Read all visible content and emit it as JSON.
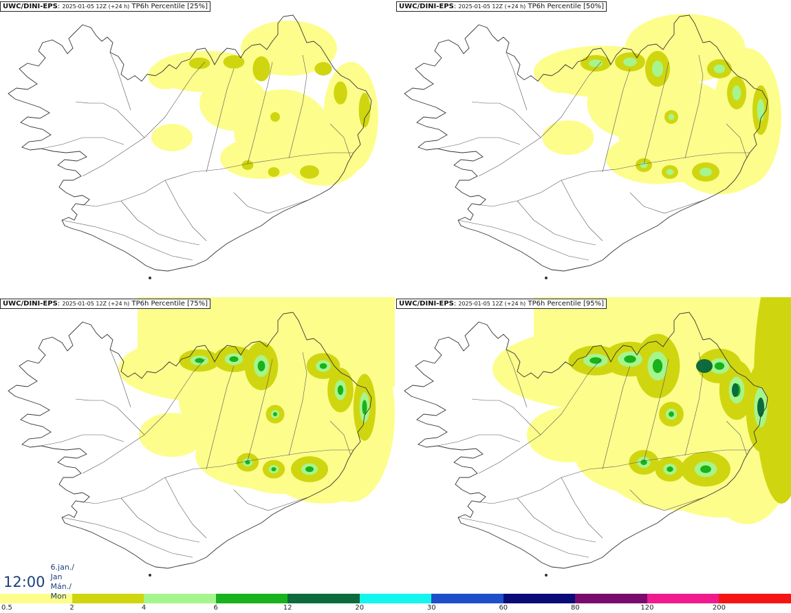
{
  "panels": [
    {
      "model": "UWC/DINI-EPS",
      "init": "2025-01-05 12Z (+24 h)",
      "field": "TP6h Percentile [25%]",
      "level": 0
    },
    {
      "model": "UWC/DINI-EPS",
      "init": "2025-01-05 12Z (+24 h)",
      "field": "TP6h Percentile [50%]",
      "level": 1
    },
    {
      "model": "UWC/DINI-EPS",
      "init": "2025-01-05 12Z (+24 h)",
      "field": "TP6h Percentile [75%]",
      "level": 2
    },
    {
      "model": "UWC/DINI-EPS",
      "init": "2025-01-05 12Z (+24 h)",
      "field": "TP6h Percentile [95%]",
      "level": 3
    }
  ],
  "valid_time": {
    "clock": "12:00",
    "date_line1": "6.jan./ Jan",
    "date_line2": "Mán./ Mon"
  },
  "legend": {
    "labels": [
      "0.5",
      "2",
      "4",
      "6",
      "12",
      "20",
      "30",
      "60",
      "80",
      "120",
      "200"
    ],
    "colors": [
      "#fdfd8c",
      "#cfd60f",
      "#a6f58c",
      "#18b21d",
      "#0c6b3c",
      "#14f5f0",
      "#1c4fc9",
      "#0a0a78",
      "#7a0a6e",
      "#f01a8c",
      "#f51414"
    ]
  },
  "colors": {
    "title_text": "#111111",
    "time_text": "#1a3f7a",
    "coast": "#333333"
  }
}
